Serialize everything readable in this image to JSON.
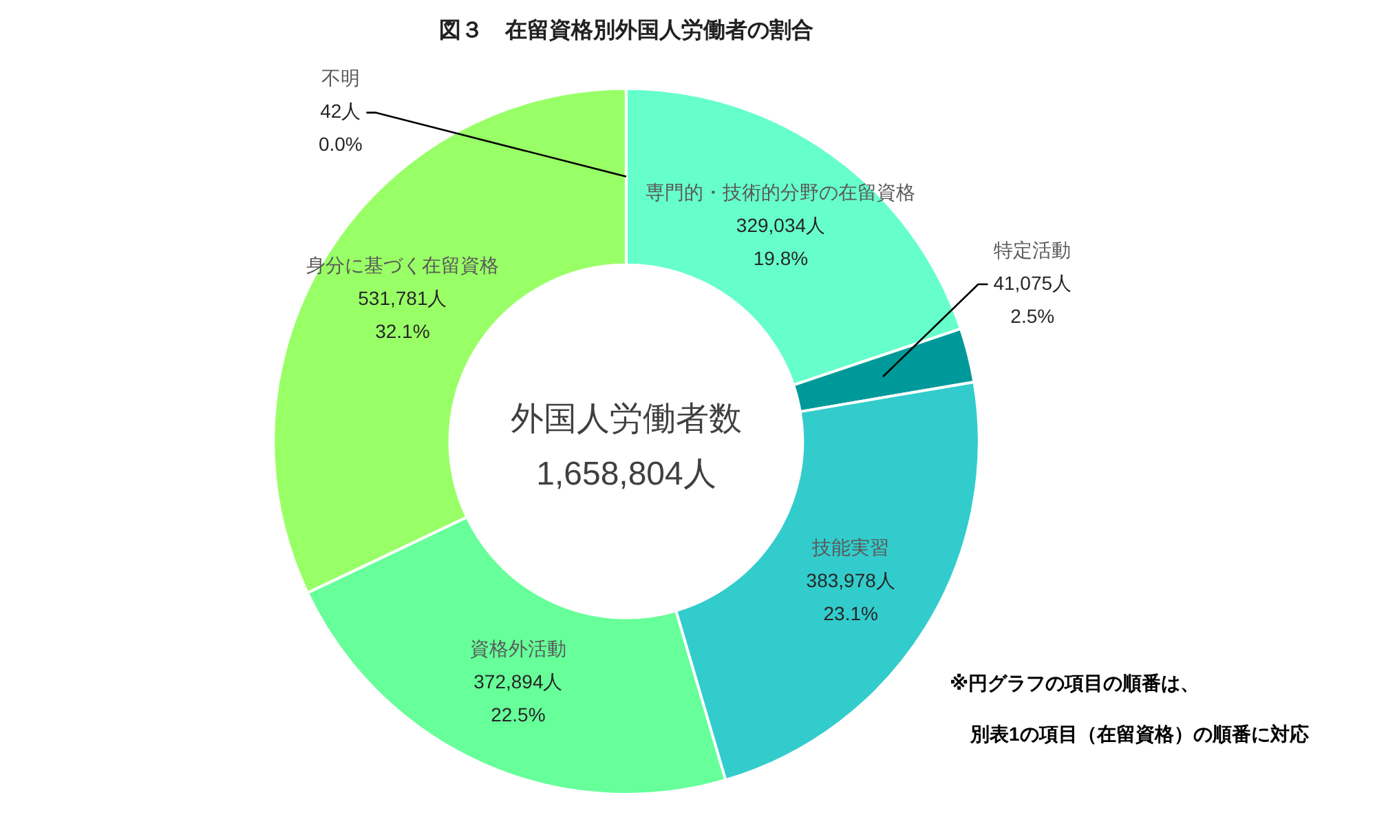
{
  "chart_data": {
    "type": "donut",
    "title": "図３　在留資格別外国人労働者の割合",
    "categories": [
      "専門的・技術的分野の在留資格",
      "特定活動",
      "技能実習",
      "資格外活動",
      "身分に基づく在留資格",
      "不明"
    ],
    "values": [
      329034,
      41075,
      383978,
      372894,
      531781,
      42
    ],
    "colors": [
      "#66ffcc",
      "#009999",
      "#33cccc",
      "#66ff99",
      "#99ff66",
      "#ccff99"
    ],
    "value_labels": [
      "329,034人\n19.8%",
      "41,075人\n2.5%",
      "383,978人\n23.1%",
      "372,894人\n22.5%",
      "531,781人\n32.1%",
      "42人\n0.0%"
    ],
    "annotations": [
      "外国人労働者数",
      "1,658,804人",
      "※円グラフの項目の順番は、",
      "別表1の項目（在留資格）の順番に対応"
    ]
  }
}
